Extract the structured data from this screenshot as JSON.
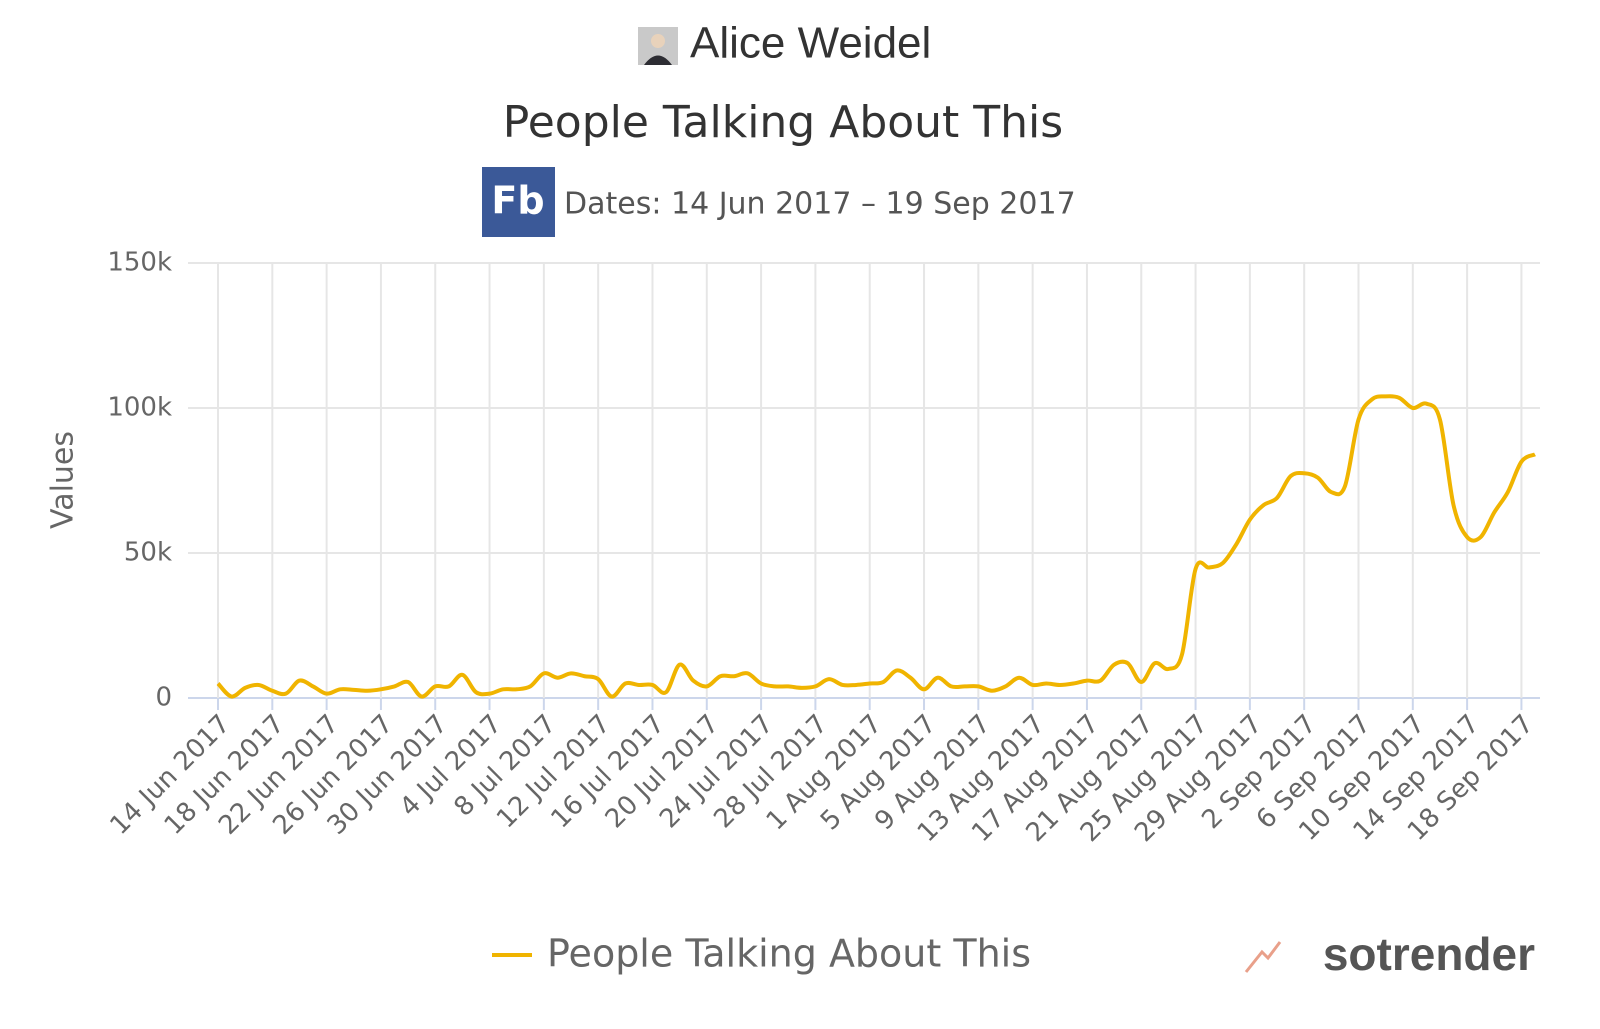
{
  "chart_data": {
    "type": "line",
    "page_name": "Alice Weidel",
    "title": "People Talking About This",
    "source_icon": "Fb",
    "subtitle": "Dates: 14 Jun 2017 – 19 Sep 2017",
    "y_axis_label": "Values",
    "watermark": "sotrender",
    "legend": "bottom",
    "grid": true,
    "x": [
      "2017-06-14",
      "2017-06-15",
      "2017-06-16",
      "2017-06-17",
      "2017-06-18",
      "2017-06-19",
      "2017-06-20",
      "2017-06-21",
      "2017-06-22",
      "2017-06-23",
      "2017-06-24",
      "2017-06-25",
      "2017-06-26",
      "2017-06-27",
      "2017-06-28",
      "2017-06-29",
      "2017-06-30",
      "2017-07-01",
      "2017-07-02",
      "2017-07-03",
      "2017-07-04",
      "2017-07-05",
      "2017-07-06",
      "2017-07-07",
      "2017-07-08",
      "2017-07-09",
      "2017-07-10",
      "2017-07-11",
      "2017-07-12",
      "2017-07-13",
      "2017-07-14",
      "2017-07-15",
      "2017-07-16",
      "2017-07-17",
      "2017-07-18",
      "2017-07-19",
      "2017-07-20",
      "2017-07-21",
      "2017-07-22",
      "2017-07-23",
      "2017-07-24",
      "2017-07-25",
      "2017-07-26",
      "2017-07-27",
      "2017-07-28",
      "2017-07-29",
      "2017-07-30",
      "2017-07-31",
      "2017-08-01",
      "2017-08-02",
      "2017-08-03",
      "2017-08-04",
      "2017-08-05",
      "2017-08-06",
      "2017-08-07",
      "2017-08-08",
      "2017-08-09",
      "2017-08-10",
      "2017-08-11",
      "2017-08-12",
      "2017-08-13",
      "2017-08-14",
      "2017-08-15",
      "2017-08-16",
      "2017-08-17",
      "2017-08-18",
      "2017-08-19",
      "2017-08-20",
      "2017-08-21",
      "2017-08-22",
      "2017-08-23",
      "2017-08-24",
      "2017-08-25",
      "2017-08-26",
      "2017-08-27",
      "2017-08-28",
      "2017-08-29",
      "2017-08-30",
      "2017-08-31",
      "2017-09-01",
      "2017-09-02",
      "2017-09-03",
      "2017-09-04",
      "2017-09-05",
      "2017-09-06",
      "2017-09-07",
      "2017-09-08",
      "2017-09-09",
      "2017-09-10",
      "2017-09-11",
      "2017-09-12",
      "2017-09-13",
      "2017-09-14",
      "2017-09-15",
      "2017-09-16",
      "2017-09-17",
      "2017-09-18",
      "2017-09-19"
    ],
    "series": [
      {
        "name": "People Talking About This",
        "color": "#f0b400",
        "values": [
          5000,
          500,
          3500,
          4500,
          2500,
          1500,
          6000,
          4000,
          1500,
          3000,
          2800,
          2500,
          3000,
          4000,
          5500,
          500,
          4000,
          4000,
          8000,
          2000,
          1500,
          3000,
          3000,
          4000,
          8500,
          7000,
          8500,
          7500,
          6500,
          500,
          5000,
          4500,
          4500,
          2000,
          11500,
          6000,
          4000,
          7500,
          7500,
          8500,
          5000,
          4000,
          4000,
          3500,
          4000,
          6500,
          4500,
          4500,
          5000,
          5500,
          9500,
          7000,
          3000,
          7000,
          4000,
          4000,
          4000,
          2500,
          4000,
          7000,
          4500,
          5000,
          4500,
          5000,
          6000,
          6000,
          11500,
          12000,
          5500,
          12000,
          10000,
          15000,
          44500,
          45000,
          46500,
          53000,
          61500,
          66500,
          69000,
          76500,
          77500,
          76000,
          71000,
          73000,
          96000,
          103000,
          104000,
          103500,
          100000,
          101500,
          96000,
          66500,
          55500,
          55500,
          64000,
          71000,
          81500,
          84000
        ]
      }
    ],
    "xlim": [
      "2017-06-14",
      "2017-09-19"
    ],
    "xticks": [
      {
        "value": "2017-06-14",
        "label": "14 Jun 2017"
      },
      {
        "value": "2017-06-18",
        "label": "18 Jun 2017"
      },
      {
        "value": "2017-06-22",
        "label": "22 Jun 2017"
      },
      {
        "value": "2017-06-26",
        "label": "26 Jun 2017"
      },
      {
        "value": "2017-06-30",
        "label": "30 Jun 2017"
      },
      {
        "value": "2017-07-04",
        "label": "4 Jul 2017"
      },
      {
        "value": "2017-07-08",
        "label": "8 Jul 2017"
      },
      {
        "value": "2017-07-12",
        "label": "12 Jul 2017"
      },
      {
        "value": "2017-07-16",
        "label": "16 Jul 2017"
      },
      {
        "value": "2017-07-20",
        "label": "20 Jul 2017"
      },
      {
        "value": "2017-07-24",
        "label": "24 Jul 2017"
      },
      {
        "value": "2017-07-28",
        "label": "28 Jul 2017"
      },
      {
        "value": "2017-08-01",
        "label": "1 Aug 2017"
      },
      {
        "value": "2017-08-05",
        "label": "5 Aug 2017"
      },
      {
        "value": "2017-08-09",
        "label": "9 Aug 2017"
      },
      {
        "value": "2017-08-13",
        "label": "13 Aug 2017"
      },
      {
        "value": "2017-08-17",
        "label": "17 Aug 2017"
      },
      {
        "value": "2017-08-21",
        "label": "21 Aug 2017"
      },
      {
        "value": "2017-08-25",
        "label": "25 Aug 2017"
      },
      {
        "value": "2017-08-29",
        "label": "29 Aug 2017"
      },
      {
        "value": "2017-09-02",
        "label": "2 Sep 2017"
      },
      {
        "value": "2017-09-06",
        "label": "6 Sep 2017"
      },
      {
        "value": "2017-09-10",
        "label": "10 Sep 2017"
      },
      {
        "value": "2017-09-14",
        "label": "14 Sep 2017"
      },
      {
        "value": "2017-09-18",
        "label": "18 Sep 2017"
      }
    ],
    "ylim": [
      0,
      150000
    ],
    "yticks": [
      0,
      {
        "value": 50000,
        "label": "50k"
      },
      {
        "value": 100000,
        "label": "100k"
      },
      {
        "value": 150000,
        "label": "150k"
      }
    ]
  }
}
